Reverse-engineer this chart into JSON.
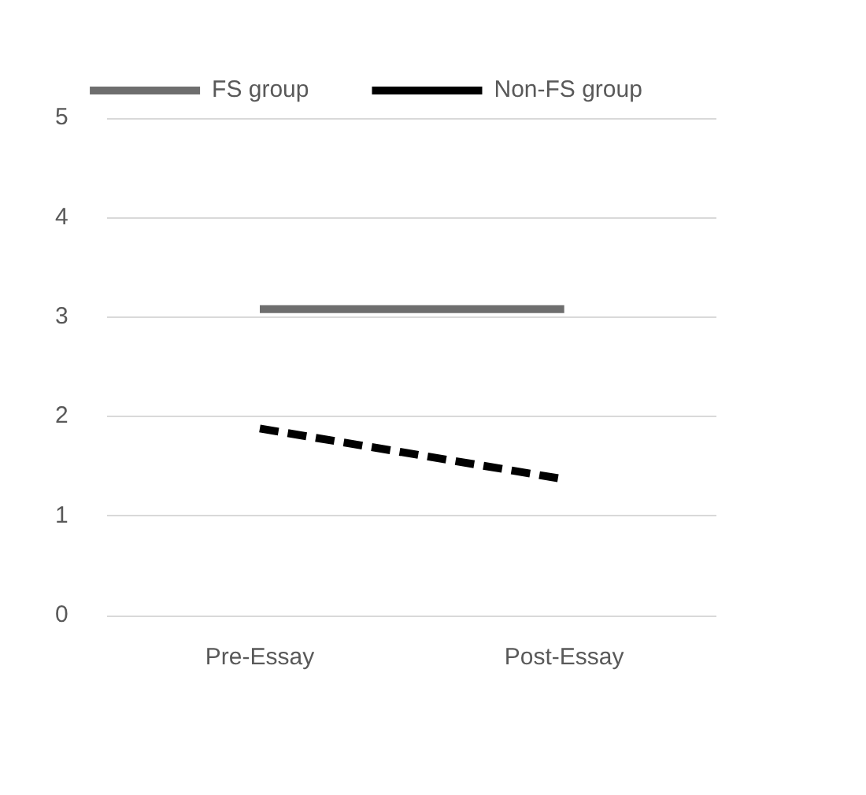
{
  "chart_data": {
    "type": "line",
    "categories": [
      "Pre-Essay",
      "Post-Essay"
    ],
    "series": [
      {
        "name": "FS group",
        "color": "#6e6e6e",
        "values": [
          3.08,
          3.08
        ],
        "line_style": "solid"
      },
      {
        "name": "Non-FS group",
        "color": "#000000",
        "values": [
          1.88,
          1.37
        ],
        "line_style": "dashed"
      }
    ],
    "ylim": [
      0,
      5
    ],
    "yticks": [
      0,
      1,
      2,
      3,
      4,
      5
    ],
    "grid": "y",
    "legend": "top",
    "marker": "none"
  }
}
